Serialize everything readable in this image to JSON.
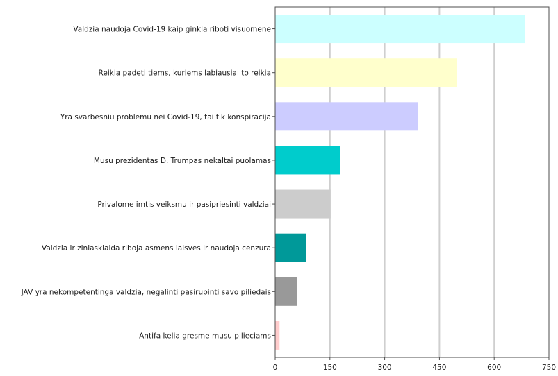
{
  "chart_data": {
    "type": "bar",
    "orientation": "horizontal",
    "title": "",
    "xlabel": "",
    "ylabel": "",
    "categories": [
      "Valdzia naudoja Covid-19 kaip ginkla riboti visuomene",
      "Reikia padeti tiems, kuriems labiausiai to reikia",
      "Yra svarbesniu problemu nei Covid-19, tai tik konspiracija",
      "Musu prezidentas D. Trumpas nekaltai puolamas",
      "Privalome imtis veiksmu ir pasipriesinti valdziai",
      "Valdzia ir ziniasklaida riboja asmens laisves ir naudoja cenzura",
      "JAV yra nekompetentinga valdzia, negalinti pasirupinti savo piliedais",
      "Antifa kelia gresme musu pilieciams"
    ],
    "values": [
      685,
      497,
      392,
      178,
      152,
      85,
      60,
      12
    ],
    "colors": [
      "#ccffff",
      "#ffffcc",
      "#ccccff",
      "#00cccc",
      "#cccccc",
      "#009999",
      "#999999",
      "#ffcccc"
    ],
    "xlim": [
      0,
      750
    ],
    "xticks": [
      0,
      150,
      300,
      450,
      600,
      750
    ],
    "grid": true
  }
}
